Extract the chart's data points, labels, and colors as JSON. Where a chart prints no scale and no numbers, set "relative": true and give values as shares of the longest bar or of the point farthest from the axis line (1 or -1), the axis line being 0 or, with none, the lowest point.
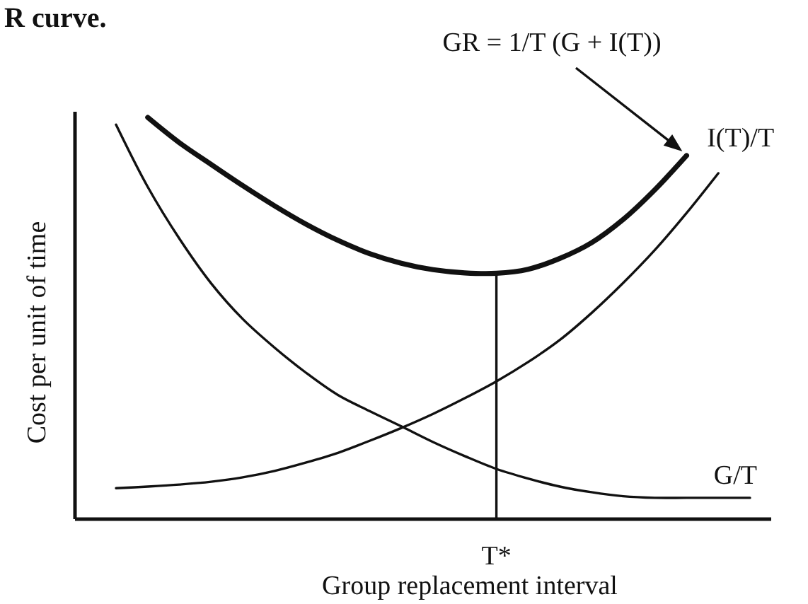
{
  "chart_data": {
    "type": "line",
    "relative": true,
    "xlabel": "Group replacement interval",
    "ylabel": "Cost per unit of time",
    "categories": [
      null,
      null,
      null,
      null,
      null,
      null,
      null,
      null,
      null,
      null,
      null,
      null,
      null,
      null,
      null,
      null,
      null,
      null,
      null,
      null,
      null
    ],
    "series": [
      {
        "color": "#111111",
        "values": [
          null,
          1.0,
          0.937,
          0.883,
          0.83,
          0.78,
          0.734,
          0.694,
          0.661,
          0.637,
          0.621,
          0.613,
          0.612,
          0.622,
          0.649,
          0.688,
          0.746,
          0.82,
          0.905,
          null,
          null
        ]
      },
      {
        "name": "I(T)/T",
        "color": "#111111",
        "values": [
          0.077,
          0.081,
          0.086,
          0.093,
          0.104,
          0.12,
          0.141,
          0.165,
          0.195,
          0.227,
          0.262,
          0.301,
          0.343,
          0.391,
          0.446,
          0.513,
          0.588,
          0.67,
          0.762,
          0.861,
          null
        ]
      },
      {
        "name": "G/T",
        "color": "#111111",
        "values": [
          0.982,
          0.827,
          0.698,
          0.587,
          0.498,
          0.427,
          0.364,
          0.309,
          0.269,
          0.231,
          0.192,
          0.157,
          0.125,
          0.101,
          0.081,
          0.067,
          0.057,
          0.053,
          0.053,
          0.053,
          0.053
        ]
      }
    ],
    "annotations": [
      "R curve.",
      "GR = 1/T (G + I(T))",
      "T*"
    ]
  }
}
